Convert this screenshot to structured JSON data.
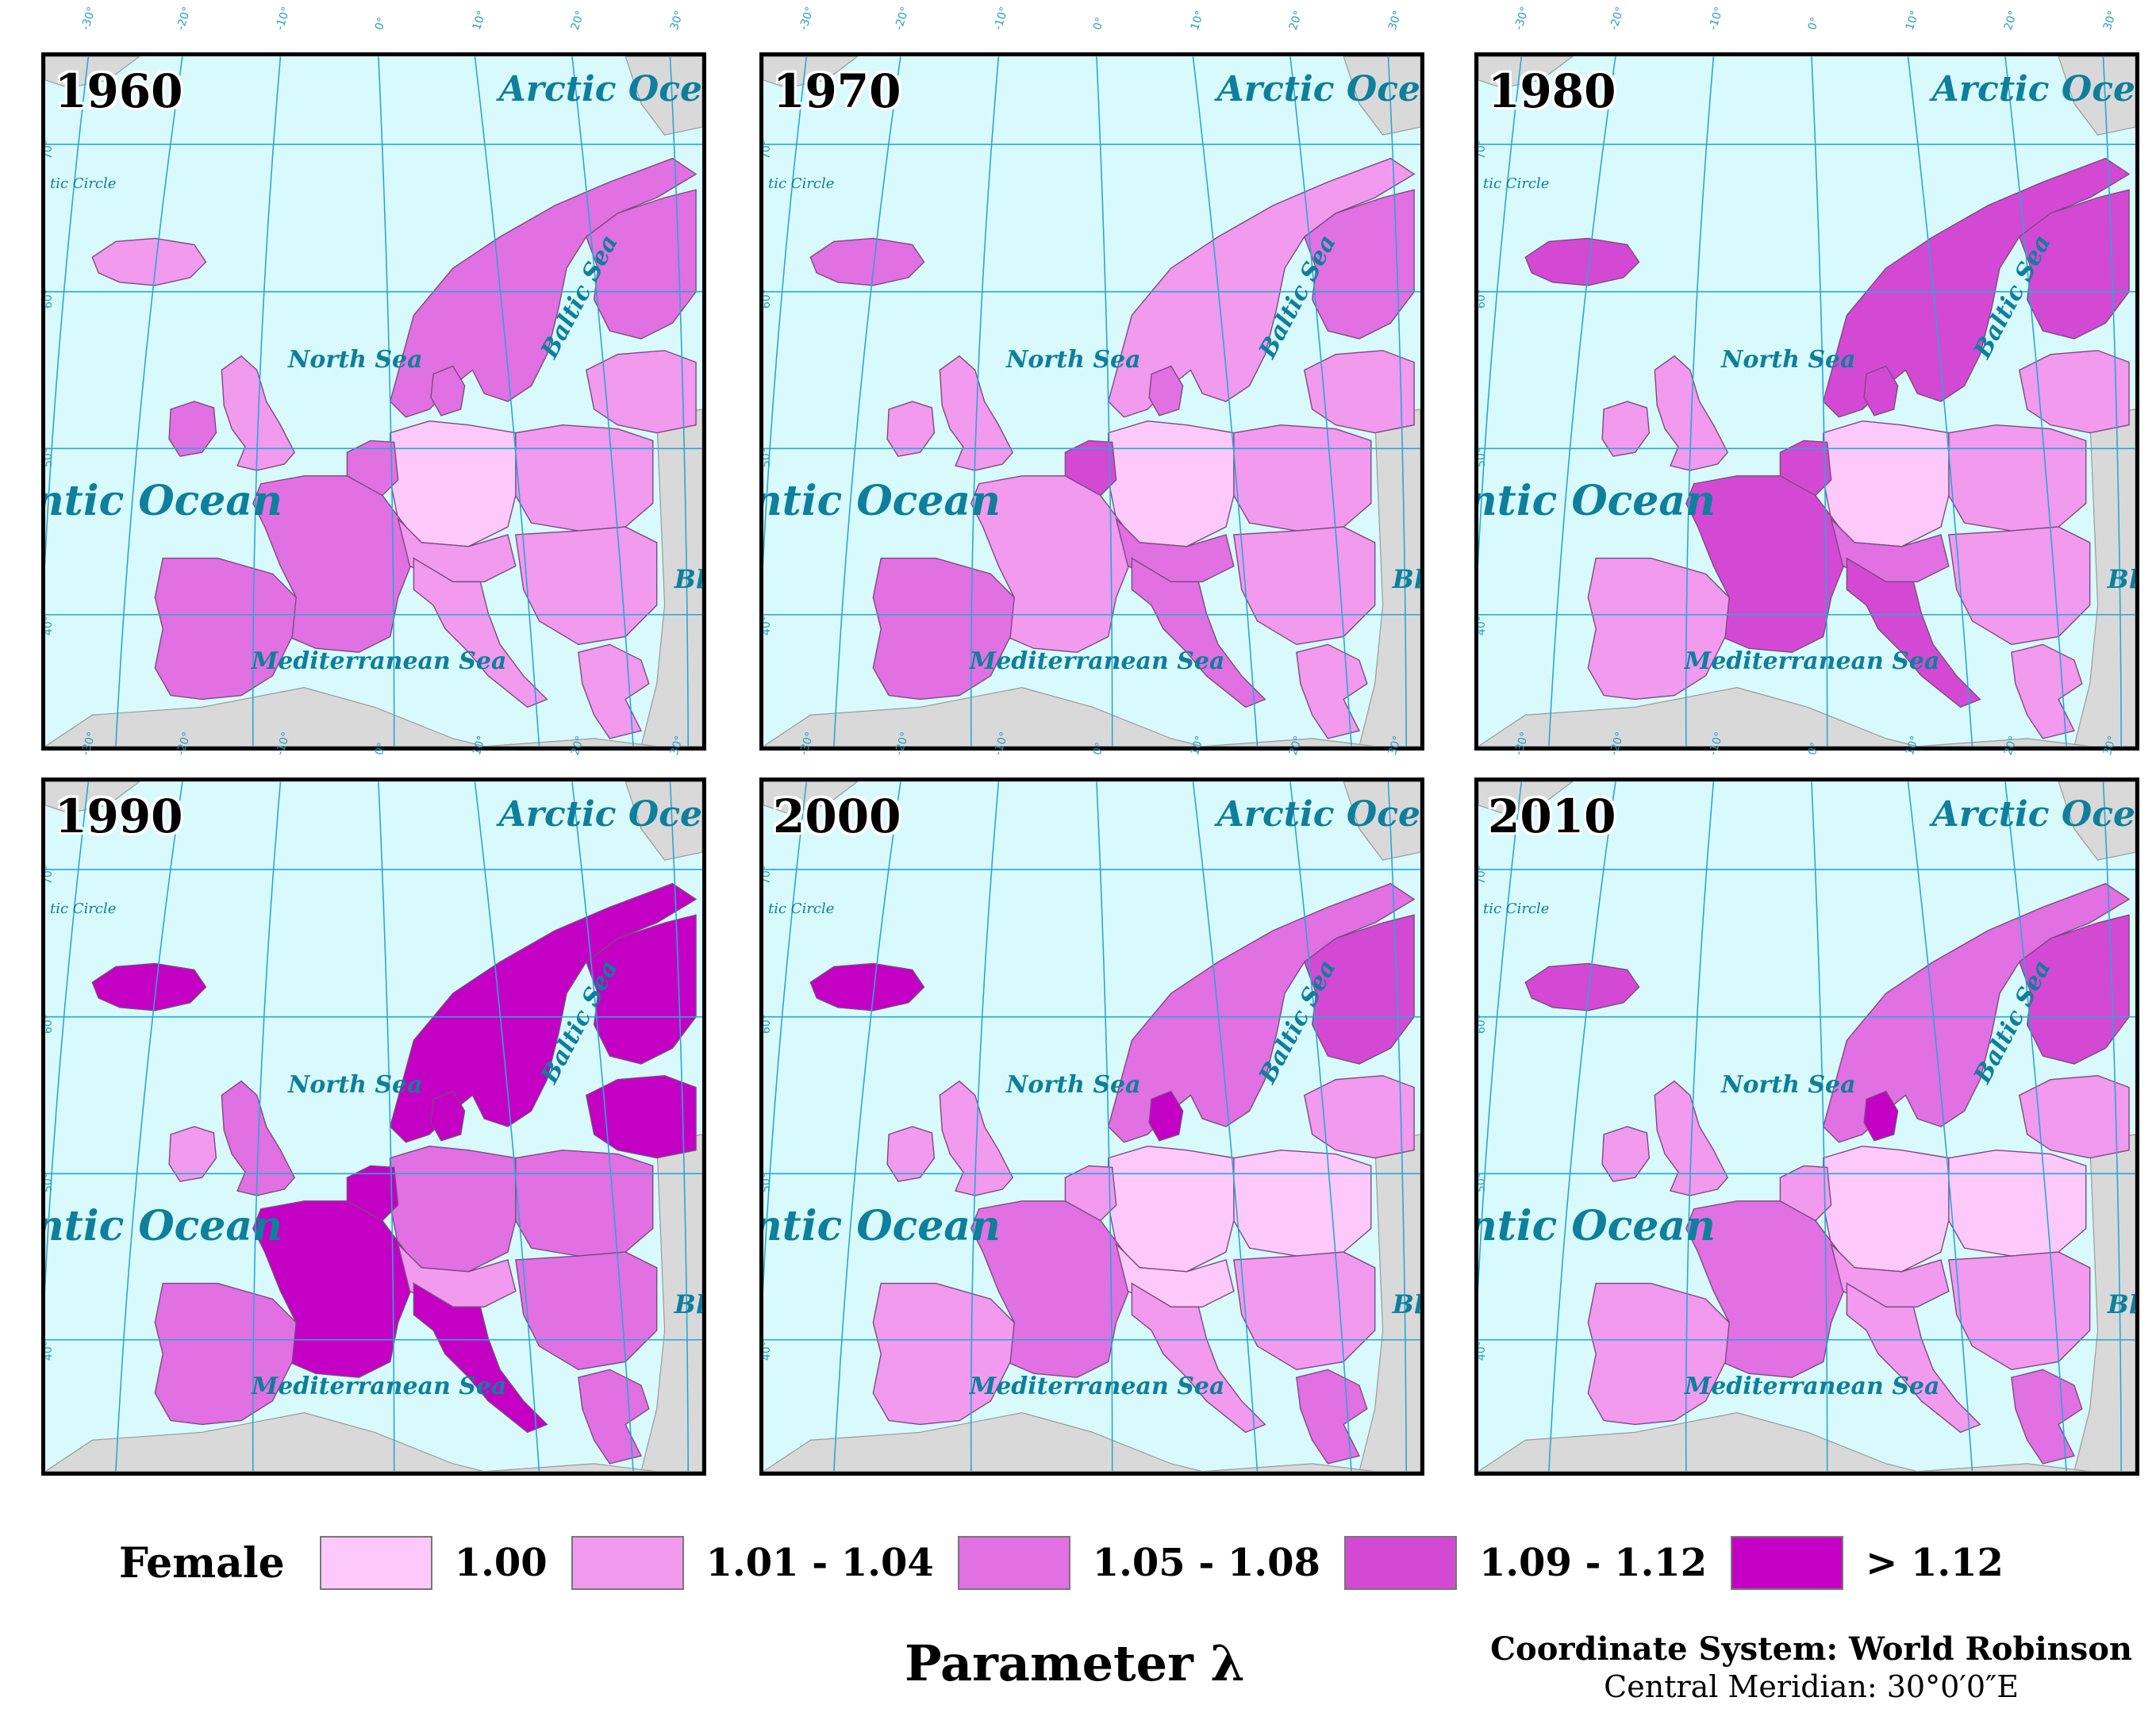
{
  "panels": [
    {
      "year": "1960",
      "fills": {
        "iceland": "c1",
        "ireland": "c2",
        "uk": "c1",
        "scandinavia": "c2",
        "finland": "c2",
        "baltics": "c1",
        "poland": "c1",
        "germany": "c0",
        "benelux": "c2",
        "france": "c2",
        "iberia": "c2",
        "italy": "c1",
        "alps": "c1",
        "greece": "c1",
        "denmark": "c2",
        "balkans_north": "c1"
      }
    },
    {
      "year": "1970",
      "fills": {
        "iceland": "c2",
        "ireland": "c1",
        "uk": "c1",
        "scandinavia": "c1",
        "finland": "c2",
        "baltics": "c1",
        "poland": "c1",
        "germany": "c0",
        "benelux": "c3",
        "france": "c1",
        "iberia": "c2",
        "italy": "c2",
        "alps": "c2",
        "greece": "c1",
        "denmark": "c2",
        "balkans_north": "c1"
      }
    },
    {
      "year": "1980",
      "fills": {
        "iceland": "c3",
        "ireland": "c1",
        "uk": "c1",
        "scandinavia": "c3",
        "finland": "c3",
        "baltics": "c1",
        "poland": "c1",
        "germany": "c0",
        "benelux": "c3",
        "france": "c3",
        "iberia": "c1",
        "italy": "c3",
        "alps": "c2",
        "greece": "c1",
        "denmark": "c3",
        "balkans_north": "c1"
      }
    },
    {
      "year": "1990",
      "fills": {
        "iceland": "c4",
        "ireland": "c1",
        "uk": "c2",
        "scandinavia": "c4",
        "finland": "c4",
        "baltics": "c4",
        "poland": "c2",
        "germany": "c2",
        "benelux": "c4",
        "france": "c4",
        "iberia": "c2",
        "italy": "c4",
        "alps": "c1",
        "greece": "c2",
        "denmark": "c4",
        "balkans_north": "c2"
      }
    },
    {
      "year": "2000",
      "fills": {
        "iceland": "c4",
        "ireland": "c1",
        "uk": "c1",
        "scandinavia": "c2",
        "finland": "c3",
        "baltics": "c1",
        "poland": "c0",
        "germany": "c0",
        "benelux": "c1",
        "france": "c2",
        "iberia": "c1",
        "italy": "c1",
        "alps": "c0",
        "greece": "c2",
        "denmark": "c4",
        "balkans_north": "c1"
      }
    },
    {
      "year": "2010",
      "fills": {
        "iceland": "c3",
        "ireland": "c1",
        "uk": "c1",
        "scandinavia": "c2",
        "finland": "c3",
        "baltics": "c1",
        "poland": "c0",
        "germany": "c0",
        "benelux": "c1",
        "france": "c2",
        "iberia": "c1",
        "italy": "c1",
        "alps": "c1",
        "greece": "c2",
        "denmark": "c4",
        "balkans_north": "c1"
      }
    }
  ],
  "map_labels": {
    "arctic": "Arctic Oce",
    "atlantic": "ntic Ocean",
    "north_sea": "North Sea",
    "baltic": "Baltic Sea",
    "mediterranean": "Mediterranean Sea",
    "black": "Bl",
    "arctic_circle": "tic Circle"
  },
  "graticule": {
    "lat_labels": [
      "70°",
      "60°",
      "50°",
      "40°"
    ],
    "lon_labels": [
      "-30°",
      "-20°",
      "-10°",
      "0°",
      "10°",
      "20°",
      "30°"
    ]
  },
  "colors": {
    "c0": "#fdc9fb",
    "c1": "#f19aee",
    "c2": "#e170e2",
    "c3": "#d449d3",
    "c4": "#c300c3",
    "land_other": "#d9d9d9",
    "sea": "#d8fafc",
    "grid": "#2aa6d4"
  },
  "legend": {
    "title": "Female",
    "items": [
      {
        "label": "1.00",
        "color": "#fdc9fb"
      },
      {
        "label": "1.01 - 1.04",
        "color": "#f19aee"
      },
      {
        "label": "1.05 - 1.08",
        "color": "#e170e2"
      },
      {
        "label": "1.09 - 1.12",
        "color": "#d449d3"
      },
      {
        "label": "> 1.12",
        "color": "#c300c3"
      }
    ]
  },
  "parameter_title": "Parameter λ",
  "coordinate_system": {
    "line1": "Coordinate System: World Robinson",
    "line2": "Central Meridian: 30°0′0″E"
  }
}
